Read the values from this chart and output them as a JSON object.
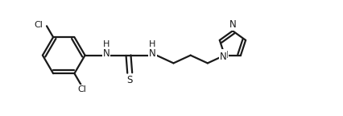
{
  "bg_color": "#ffffff",
  "line_color": "#1a1a1a",
  "line_width": 1.6,
  "figsize": [
    4.26,
    1.44
  ],
  "dpi": 100,
  "xlim": [
    0,
    10
  ],
  "ylim": [
    0,
    3.4
  ]
}
